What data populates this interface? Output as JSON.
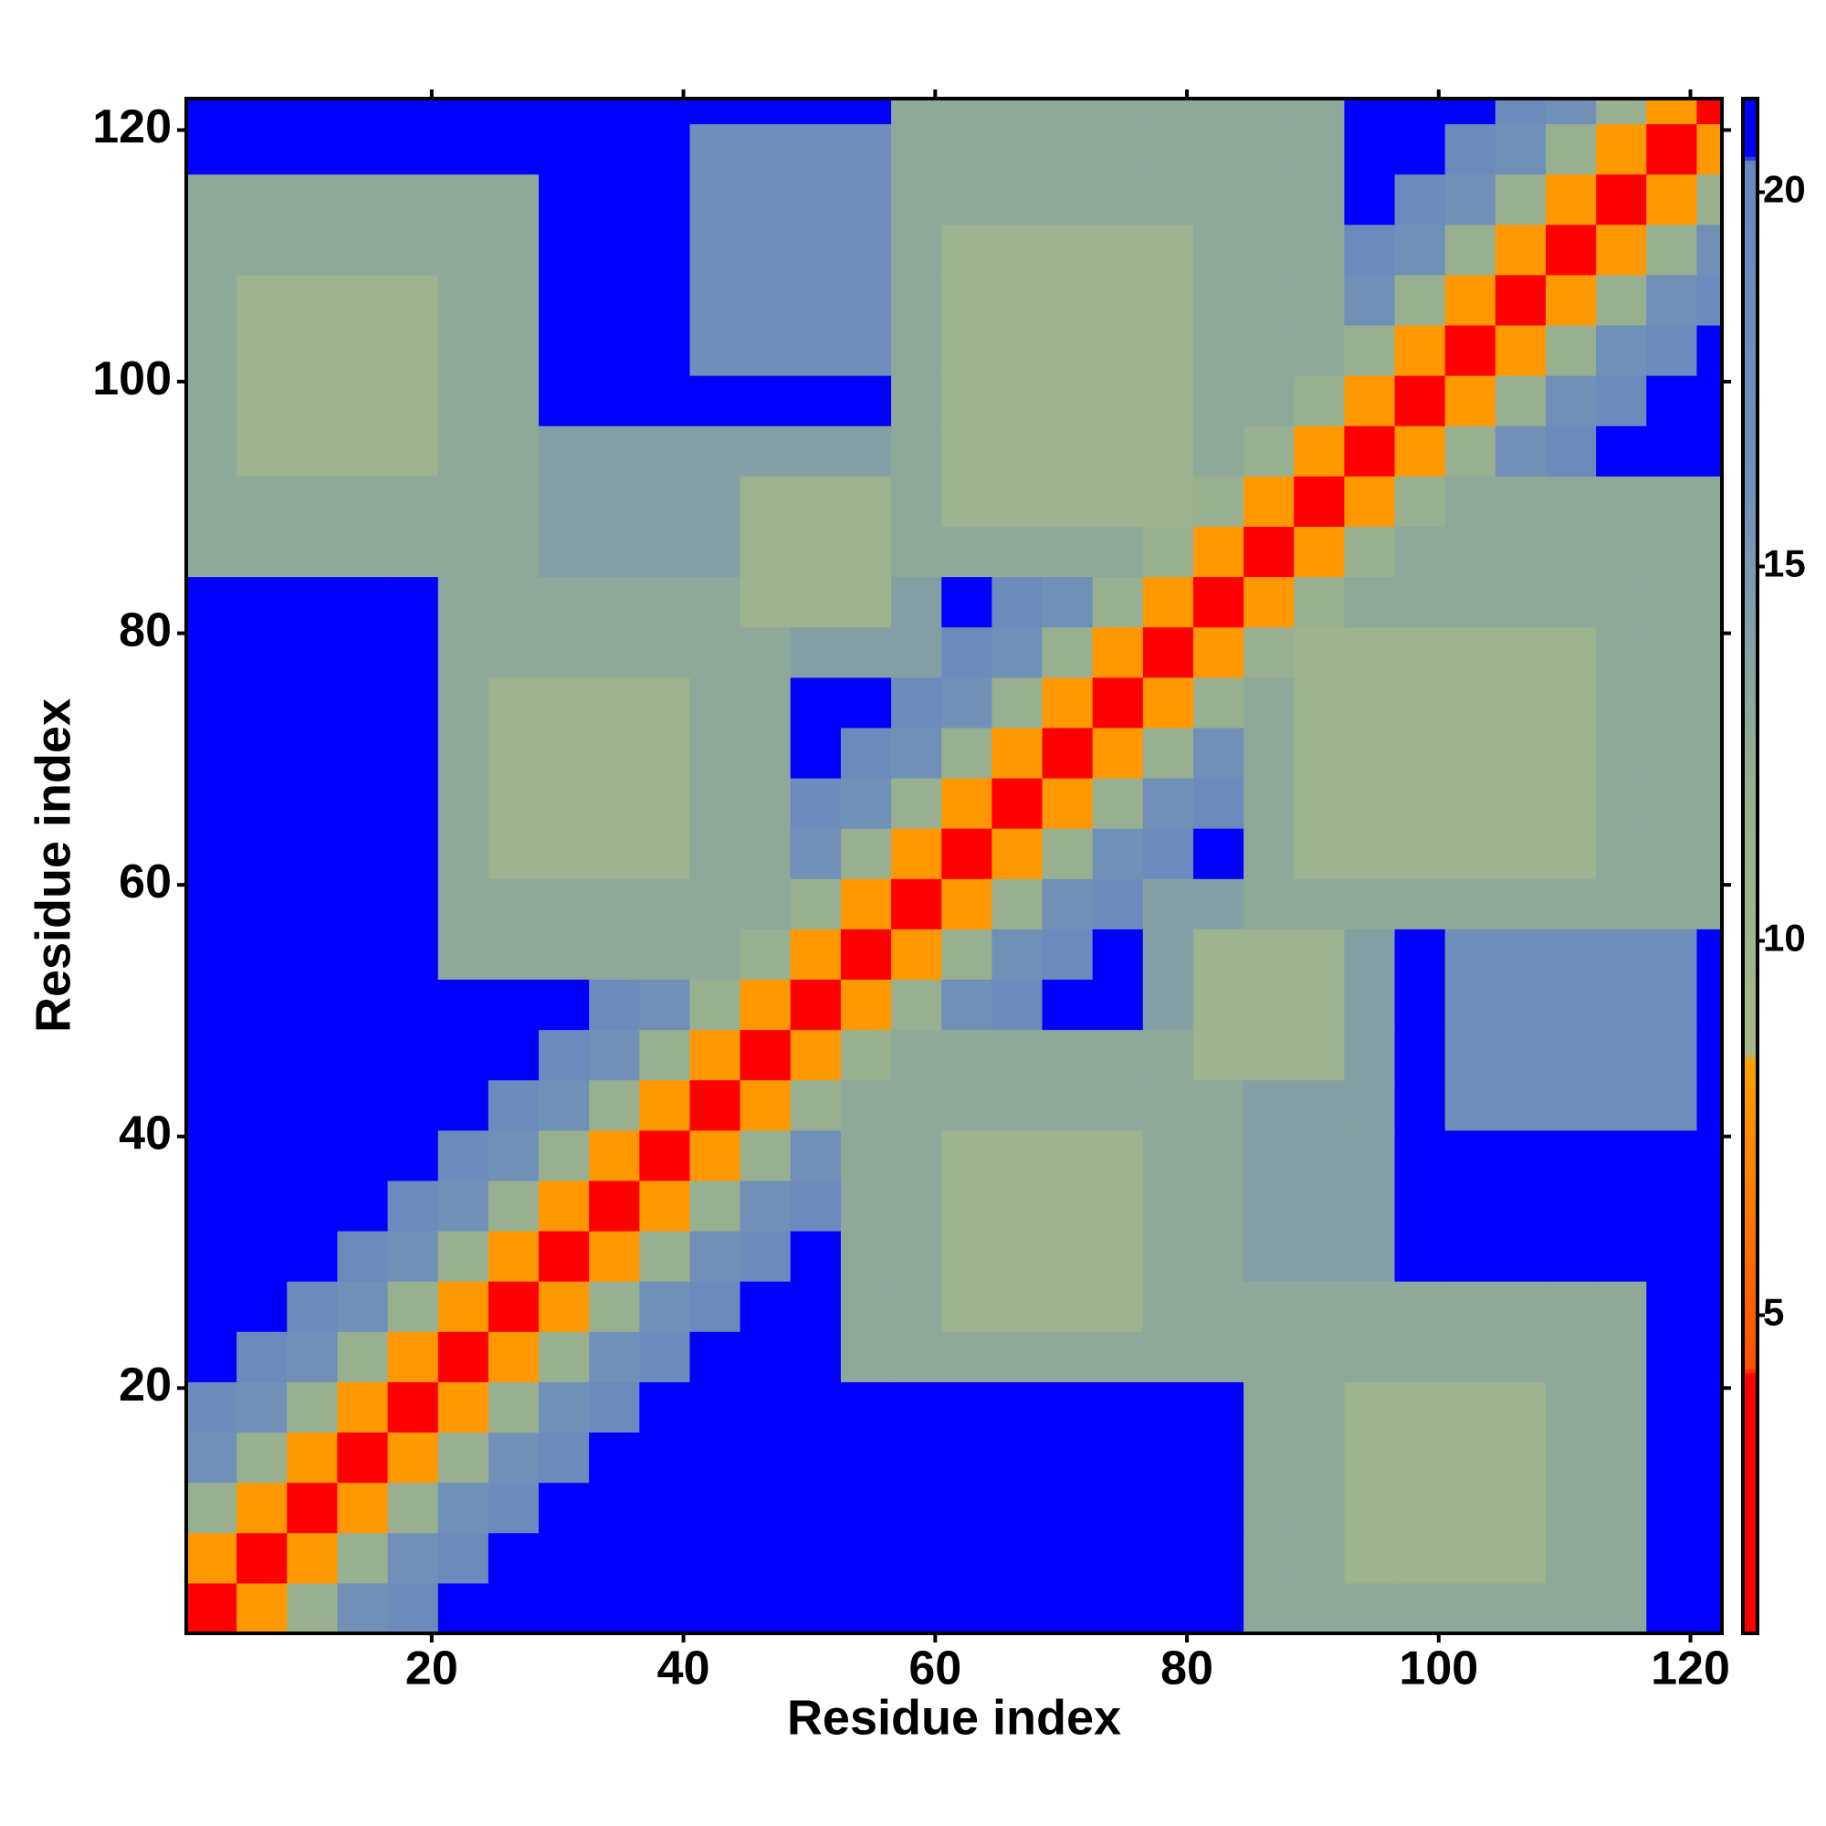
{
  "chart_data": {
    "type": "heatmap",
    "xlabel": "Residue index",
    "ylabel": "Residue index",
    "xbins": [
      0.5,
      4.5,
      8.5,
      12.5,
      16.5,
      20.5,
      24.5,
      28.5,
      32.5,
      36.5,
      40.5,
      44.5,
      48.5,
      52.5,
      56.5,
      60.5,
      64.5,
      68.5,
      72.5,
      76.5,
      80.5,
      84.5,
      88.5,
      92.5,
      96.5,
      100.5,
      104.5,
      108.5,
      112.5,
      116.5,
      120.5,
      122.5
    ],
    "ybins": [
      0.5,
      4.5,
      8.5,
      12.5,
      16.5,
      20.5,
      24.5,
      28.5,
      32.5,
      36.5,
      40.5,
      44.5,
      48.5,
      52.5,
      56.5,
      60.5,
      64.5,
      68.5,
      72.5,
      76.5,
      80.5,
      84.5,
      88.5,
      92.5,
      96.5,
      100.5,
      104.5,
      108.5,
      112.5,
      116.5,
      120.5,
      122.5
    ],
    "z": [
      [
        4,
        8,
        12,
        16,
        19,
        21,
        21,
        21,
        21,
        21,
        21,
        21,
        21,
        21,
        21,
        21,
        21,
        21,
        21,
        21,
        21,
        13,
        13,
        13,
        13,
        13,
        13,
        13,
        13,
        21,
        21
      ],
      [
        8,
        4,
        8,
        12,
        16,
        19,
        21,
        21,
        21,
        21,
        21,
        21,
        21,
        21,
        21,
        21,
        21,
        21,
        21,
        21,
        21,
        13,
        13,
        11,
        11,
        11,
        11,
        13,
        13,
        21,
        21
      ],
      [
        12,
        8,
        4,
        8,
        12,
        16,
        19,
        21,
        21,
        21,
        21,
        21,
        21,
        21,
        21,
        21,
        21,
        21,
        21,
        21,
        21,
        13,
        13,
        11,
        11,
        11,
        11,
        13,
        13,
        21,
        21
      ],
      [
        16,
        12,
        8,
        4,
        8,
        12,
        16,
        19,
        21,
        21,
        21,
        21,
        21,
        21,
        21,
        21,
        21,
        21,
        21,
        21,
        21,
        13,
        13,
        11,
        11,
        11,
        11,
        13,
        13,
        21,
        21
      ],
      [
        19,
        16,
        12,
        8,
        4,
        8,
        12,
        16,
        19,
        21,
        21,
        21,
        21,
        21,
        21,
        21,
        21,
        21,
        21,
        21,
        21,
        13,
        13,
        11,
        11,
        11,
        11,
        13,
        13,
        21,
        21
      ],
      [
        21,
        19,
        16,
        12,
        8,
        4,
        8,
        12,
        16,
        19,
        21,
        21,
        21,
        13,
        13,
        13,
        13,
        13,
        13,
        13,
        13,
        13,
        13,
        13,
        13,
        13,
        13,
        13,
        13,
        21,
        21
      ],
      [
        21,
        21,
        19,
        16,
        12,
        8,
        4,
        8,
        12,
        16,
        19,
        21,
        21,
        13,
        13,
        11,
        11,
        11,
        11,
        13,
        13,
        13,
        13,
        13,
        13,
        13,
        13,
        13,
        13,
        21,
        21
      ],
      [
        21,
        21,
        21,
        19,
        16,
        12,
        8,
        4,
        8,
        12,
        16,
        19,
        21,
        13,
        13,
        11,
        11,
        11,
        11,
        13,
        13,
        14,
        14,
        14,
        21,
        21,
        21,
        21,
        21,
        21,
        21
      ],
      [
        21,
        21,
        21,
        21,
        19,
        16,
        12,
        8,
        4,
        8,
        12,
        16,
        19,
        13,
        13,
        11,
        11,
        11,
        11,
        13,
        13,
        14,
        14,
        14,
        21,
        21,
        21,
        21,
        21,
        21,
        21
      ],
      [
        21,
        21,
        21,
        21,
        21,
        19,
        16,
        12,
        8,
        4,
        8,
        12,
        16,
        13,
        13,
        11,
        11,
        11,
        11,
        13,
        13,
        14,
        14,
        14,
        21,
        21,
        21,
        21,
        21,
        21,
        21
      ],
      [
        21,
        21,
        21,
        21,
        21,
        21,
        19,
        16,
        12,
        8,
        4,
        8,
        12,
        13,
        13,
        13,
        13,
        13,
        13,
        13,
        13,
        14,
        14,
        14,
        21,
        17,
        17,
        17,
        17,
        17,
        21
      ],
      [
        21,
        21,
        21,
        21,
        21,
        21,
        21,
        19,
        16,
        12,
        8,
        4,
        8,
        12,
        13,
        13,
        13,
        13,
        13,
        13,
        11,
        11,
        11,
        14,
        21,
        17,
        17,
        17,
        17,
        17,
        21
      ],
      [
        21,
        21,
        21,
        21,
        21,
        21,
        21,
        21,
        19,
        16,
        12,
        8,
        4,
        8,
        12,
        16,
        19,
        21,
        21,
        14,
        11,
        11,
        11,
        14,
        21,
        17,
        17,
        17,
        17,
        17,
        21
      ],
      [
        21,
        21,
        21,
        21,
        21,
        13,
        13,
        13,
        13,
        13,
        13,
        12,
        8,
        4,
        8,
        12,
        16,
        19,
        21,
        14,
        11,
        11,
        11,
        14,
        21,
        17,
        17,
        17,
        17,
        17,
        21
      ],
      [
        21,
        21,
        21,
        21,
        21,
        13,
        13,
        13,
        13,
        13,
        13,
        13,
        12,
        8,
        4,
        8,
        12,
        16,
        19,
        14,
        14,
        13,
        13,
        13,
        13,
        13,
        13,
        13,
        13,
        13,
        13
      ],
      [
        21,
        21,
        21,
        21,
        21,
        13,
        11,
        11,
        11,
        11,
        13,
        13,
        16,
        12,
        8,
        4,
        8,
        12,
        16,
        19,
        21,
        13,
        11,
        11,
        11,
        11,
        11,
        11,
        13,
        13,
        13
      ],
      [
        21,
        21,
        21,
        21,
        21,
        13,
        11,
        11,
        11,
        11,
        13,
        13,
        19,
        16,
        12,
        8,
        4,
        8,
        12,
        16,
        19,
        13,
        11,
        11,
        11,
        11,
        11,
        11,
        13,
        13,
        13
      ],
      [
        21,
        21,
        21,
        21,
        21,
        13,
        11,
        11,
        11,
        11,
        13,
        13,
        21,
        19,
        16,
        12,
        8,
        4,
        8,
        12,
        16,
        13,
        11,
        11,
        11,
        11,
        11,
        11,
        13,
        13,
        13
      ],
      [
        21,
        21,
        21,
        21,
        21,
        13,
        11,
        11,
        11,
        11,
        13,
        13,
        21,
        21,
        19,
        16,
        12,
        8,
        4,
        8,
        12,
        13,
        11,
        11,
        11,
        11,
        11,
        11,
        13,
        13,
        13
      ],
      [
        21,
        21,
        21,
        21,
        21,
        13,
        13,
        13,
        13,
        13,
        13,
        13,
        14,
        14,
        14,
        19,
        16,
        12,
        8,
        4,
        8,
        12,
        11,
        11,
        11,
        11,
        11,
        11,
        13,
        13,
        13
      ],
      [
        21,
        21,
        21,
        21,
        21,
        13,
        13,
        13,
        13,
        13,
        13,
        11,
        11,
        11,
        14,
        21,
        19,
        16,
        12,
        8,
        4,
        8,
        12,
        13,
        13,
        13,
        13,
        13,
        13,
        13,
        13
      ],
      [
        13,
        13,
        13,
        13,
        13,
        13,
        13,
        14,
        14,
        14,
        14,
        11,
        11,
        11,
        13,
        13,
        13,
        13,
        13,
        12,
        8,
        4,
        8,
        12,
        13,
        13,
        13,
        13,
        13,
        13,
        13
      ],
      [
        13,
        13,
        13,
        13,
        13,
        13,
        13,
        14,
        14,
        14,
        14,
        11,
        11,
        11,
        13,
        11,
        11,
        11,
        11,
        11,
        12,
        8,
        4,
        8,
        12,
        13,
        13,
        13,
        13,
        13,
        13
      ],
      [
        13,
        11,
        11,
        11,
        11,
        13,
        13,
        14,
        14,
        14,
        14,
        14,
        14,
        14,
        13,
        11,
        11,
        11,
        11,
        11,
        13,
        12,
        8,
        4,
        8,
        12,
        16,
        19,
        21,
        21,
        21
      ],
      [
        13,
        11,
        11,
        11,
        11,
        13,
        13,
        21,
        21,
        21,
        21,
        21,
        21,
        21,
        13,
        11,
        11,
        11,
        11,
        11,
        13,
        13,
        12,
        8,
        4,
        8,
        12,
        16,
        19,
        21,
        21
      ],
      [
        13,
        11,
        11,
        11,
        11,
        13,
        13,
        21,
        21,
        21,
        17,
        17,
        17,
        17,
        13,
        11,
        11,
        11,
        11,
        11,
        13,
        13,
        13,
        12,
        8,
        4,
        8,
        12,
        16,
        19,
        21
      ],
      [
        13,
        11,
        11,
        11,
        11,
        13,
        13,
        21,
        21,
        21,
        17,
        17,
        17,
        17,
        13,
        11,
        11,
        11,
        11,
        11,
        13,
        13,
        13,
        16,
        12,
        8,
        4,
        8,
        12,
        16,
        19
      ],
      [
        13,
        13,
        13,
        13,
        13,
        13,
        13,
        21,
        21,
        21,
        17,
        17,
        17,
        17,
        13,
        11,
        11,
        11,
        11,
        11,
        13,
        13,
        13,
        19,
        16,
        12,
        8,
        4,
        8,
        12,
        16
      ],
      [
        13,
        13,
        13,
        13,
        13,
        13,
        13,
        21,
        21,
        21,
        17,
        17,
        17,
        17,
        13,
        13,
        13,
        13,
        13,
        13,
        13,
        13,
        13,
        21,
        19,
        16,
        12,
        8,
        4,
        8,
        12
      ],
      [
        21,
        21,
        21,
        21,
        21,
        21,
        21,
        21,
        21,
        21,
        17,
        17,
        17,
        17,
        13,
        13,
        13,
        13,
        13,
        13,
        13,
        13,
        13,
        21,
        21,
        19,
        16,
        12,
        8,
        4,
        8
      ],
      [
        21,
        21,
        21,
        21,
        21,
        21,
        21,
        21,
        21,
        21,
        21,
        21,
        21,
        21,
        13,
        13,
        13,
        13,
        13,
        13,
        13,
        13,
        13,
        21,
        21,
        21,
        19,
        16,
        12,
        8,
        4
      ]
    ],
    "xlim": [
      0.5,
      122.5
    ],
    "ylim": [
      0.5,
      122.5
    ],
    "xticks": [
      20,
      40,
      60,
      80,
      100,
      120
    ],
    "yticks": [
      20,
      40,
      60,
      80,
      100,
      120
    ],
    "zlim": [
      0.75,
      21.25
    ],
    "zticks": [
      5,
      10,
      15,
      20
    ],
    "colorscale": [
      [
        0.75,
        "#ff0000"
      ],
      [
        4.2,
        "#ff0000"
      ],
      [
        4.3,
        "#ff5000"
      ],
      [
        8.4,
        "#ffa000"
      ],
      [
        8.5,
        "#a8b888"
      ],
      [
        12,
        "#98b090"
      ],
      [
        16,
        "#7090b8"
      ],
      [
        20.4,
        "#6a88c0"
      ],
      [
        20.5,
        "#0000ff"
      ],
      [
        21.25,
        "#0000ff"
      ]
    ]
  }
}
